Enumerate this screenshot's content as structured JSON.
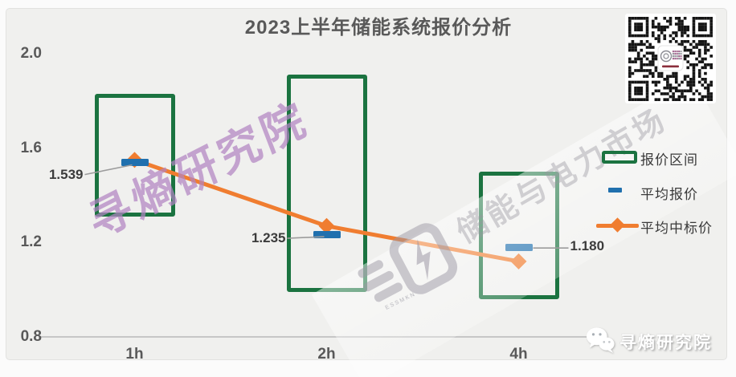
{
  "title": "2023上半年储能系统报价分析",
  "colors": {
    "range_green": "#1B7340",
    "avg_quote_blue": "#2070AE",
    "avg_win_orange": "#F07D30",
    "title_gray": "#595959",
    "label_dark": "#3C3C3C",
    "axis_line": "#C6C6C6",
    "background": "#F0F0EE",
    "watermark_purple": "#B183C2"
  },
  "icons": {
    "qr": "qr-code",
    "wechat": "wechat-icon"
  },
  "watermarks": {
    "purple_text": "寻熵研究院",
    "gray_text": "储能与电力市场",
    "gray_caption": "ESSMKN"
  },
  "branding": {
    "label": "寻熵研究院"
  },
  "chart_data": {
    "type": "combo",
    "title": "2023上半年储能系统报价分析",
    "categories": [
      "1h",
      "2h",
      "4h"
    ],
    "ylim": [
      0.8,
      2.0
    ],
    "y_ticks": [
      2.0,
      1.6,
      1.2,
      0.8
    ],
    "grid": false,
    "legend_position": "right",
    "series": [
      {
        "name": "报价区间",
        "type": "range-box",
        "low": [
          1.31,
          0.99,
          0.96
        ],
        "high": [
          1.83,
          1.91,
          1.5
        ]
      },
      {
        "name": "平均报价",
        "type": "dash-marker",
        "values": [
          1.539,
          1.235,
          1.18
        ],
        "labels": [
          "1.539",
          "1.235",
          "1.180"
        ]
      },
      {
        "name": "平均中标价",
        "type": "line-diamond",
        "values": [
          1.55,
          1.27,
          1.12
        ]
      }
    ]
  }
}
